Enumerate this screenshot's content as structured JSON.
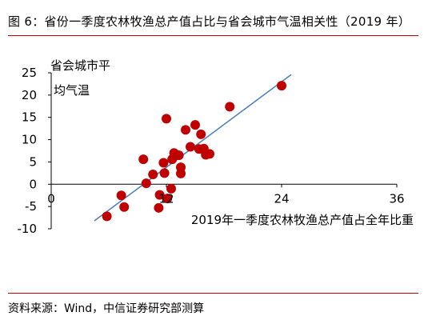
{
  "title": "图 6：省份一季度农林牧渔总产值占比与省会城市气温相关性（2019 年）",
  "source": "资料来源：Wind，中信证券研究部测算",
  "chart_data": {
    "type": "scatter",
    "title": "图 6：省份一季度农林牧渔总产值占比与省会城市气温相关性（2019 年）",
    "xlabel": "2019年一季度农林牧渔总产值占全年比重",
    "ylabel_lines": [
      "省会城市平",
      "均气温"
    ],
    "xlim": [
      0,
      36
    ],
    "ylim": [
      -10,
      25
    ],
    "xticks": [
      0,
      12,
      24,
      36
    ],
    "xtick_labels": [
      "0",
      "12",
      "24",
      "36"
    ],
    "yticks": [
      -10,
      -5,
      0,
      5,
      10,
      15,
      20,
      25
    ],
    "ytick_labels": [
      "-10",
      "-5",
      "0",
      "5",
      "10",
      "15",
      "20",
      "25"
    ],
    "grid": false,
    "marker_color": "#c00000",
    "trendline_color": "#4a7ebb",
    "points": [
      {
        "x": 5.8,
        "y": -7.2
      },
      {
        "x": 7.3,
        "y": -2.5
      },
      {
        "x": 7.6,
        "y": -5.1
      },
      {
        "x": 9.6,
        "y": 5.6
      },
      {
        "x": 9.9,
        "y": 0.2
      },
      {
        "x": 10.6,
        "y": 2.2
      },
      {
        "x": 11.2,
        "y": -5.3
      },
      {
        "x": 11.3,
        "y": -2.4
      },
      {
        "x": 11.7,
        "y": 4.8
      },
      {
        "x": 11.8,
        "y": 2.5
      },
      {
        "x": 12.0,
        "y": 14.7
      },
      {
        "x": 12.1,
        "y": -3.2
      },
      {
        "x": 12.5,
        "y": -1.0
      },
      {
        "x": 12.6,
        "y": 5.6
      },
      {
        "x": 12.8,
        "y": 7.0
      },
      {
        "x": 13.3,
        "y": 6.5
      },
      {
        "x": 13.5,
        "y": 3.8
      },
      {
        "x": 13.5,
        "y": 2.4
      },
      {
        "x": 14.0,
        "y": 12.2
      },
      {
        "x": 14.5,
        "y": 8.4
      },
      {
        "x": 15.0,
        "y": 13.3
      },
      {
        "x": 15.4,
        "y": 7.9
      },
      {
        "x": 15.6,
        "y": 11.2
      },
      {
        "x": 15.9,
        "y": 8.0
      },
      {
        "x": 16.1,
        "y": 6.6
      },
      {
        "x": 16.5,
        "y": 6.8
      },
      {
        "x": 18.6,
        "y": 17.4
      },
      {
        "x": 24.0,
        "y": 22.1
      }
    ],
    "trendline": {
      "x": [
        4.5,
        25.0
      ],
      "y": [
        -8.2,
        24.6
      ]
    }
  }
}
